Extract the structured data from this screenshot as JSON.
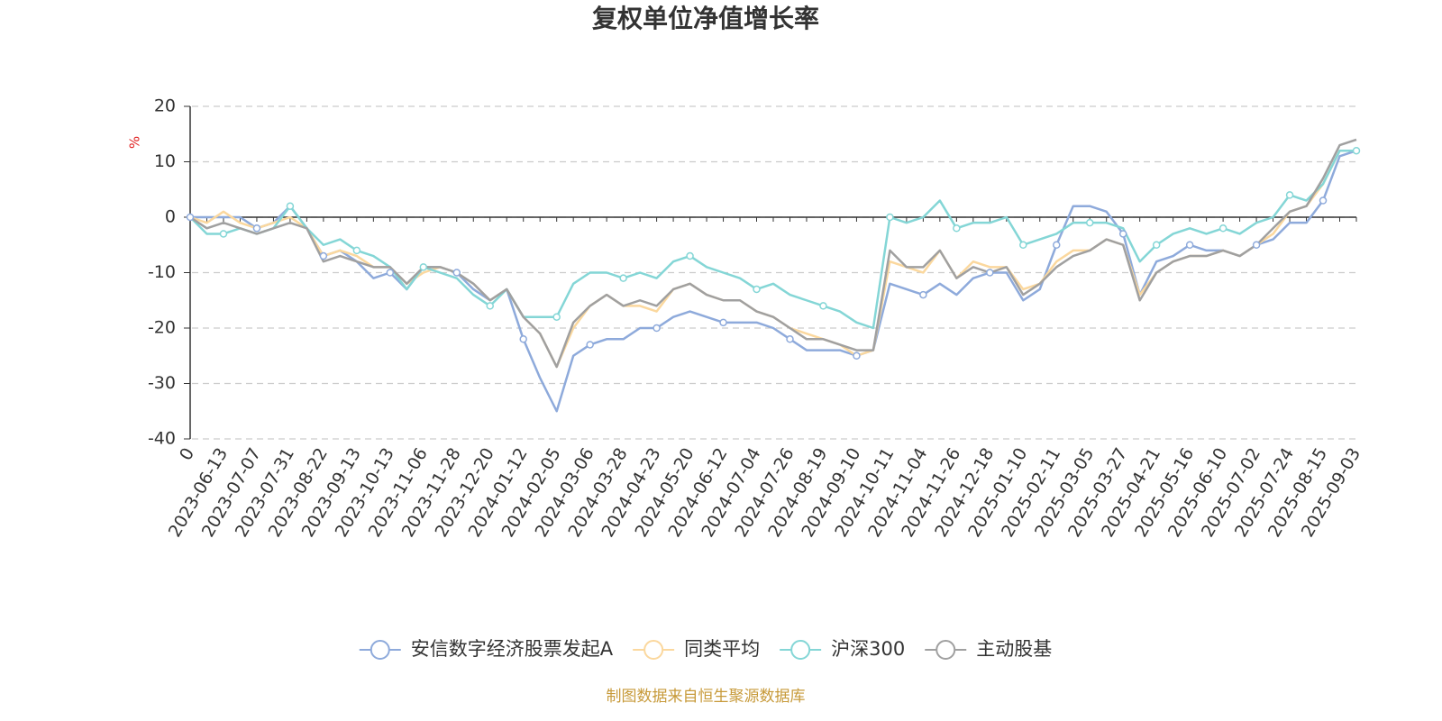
{
  "chart_data": {
    "type": "line",
    "title": "复权单位净值增长率",
    "y_label": "%",
    "source": "制图数据来自恒生聚源数据库",
    "categories": [
      "0",
      null,
      "2023-06-13",
      null,
      "2023-07-07",
      null,
      "2023-07-31",
      null,
      "2023-08-22",
      null,
      "2023-09-13",
      null,
      "2023-10-13",
      null,
      "2023-11-06",
      null,
      "2023-11-28",
      null,
      "2023-12-20",
      null,
      "2024-01-12",
      null,
      "2024-02-05",
      null,
      "2024-03-06",
      null,
      "2024-03-28",
      null,
      "2024-04-23",
      null,
      "2024-05-20",
      null,
      "2024-06-12",
      null,
      "2024-07-04",
      null,
      "2024-07-26",
      null,
      "2024-08-19",
      null,
      "2024-09-10",
      null,
      "2024-10-11",
      null,
      "2024-11-04",
      null,
      "2024-11-26",
      null,
      "2024-12-18",
      null,
      "2025-01-10",
      null,
      "2025-02-11",
      null,
      "2025-03-05",
      null,
      "2025-03-27",
      null,
      "2025-04-21",
      null,
      "2025-05-16",
      null,
      "2025-06-10",
      null,
      "2025-07-02",
      null,
      "2025-07-24",
      null,
      "2025-08-15",
      null,
      "2025-09-03"
    ],
    "series": [
      {
        "name": "安信数字经济股票发起A",
        "color": "#8eaadb",
        "values": [
          0,
          0,
          0,
          0,
          -2,
          -1,
          2,
          -2,
          -7,
          -6,
          -8,
          -11,
          -10,
          -13,
          -9,
          -9,
          -10,
          -13,
          -15,
          -13,
          -22,
          -29,
          -35,
          -25,
          -23,
          -22,
          -22,
          -20,
          -20,
          -18,
          -17,
          -18,
          -19,
          -19,
          -19,
          -20,
          -22,
          -24,
          -24,
          -24,
          -25,
          -24,
          -12,
          -13,
          -14,
          -12,
          -14,
          -11,
          -10,
          -10,
          -15,
          -13,
          -5,
          2,
          2,
          1,
          -3,
          -14,
          -8,
          -7,
          -5,
          -6,
          -6,
          -7,
          -5,
          -4,
          -1,
          -1,
          3,
          11,
          12
        ]
      },
      {
        "name": "同类平均",
        "color": "#fbd89e",
        "values": [
          0,
          -1,
          1,
          -1,
          -2,
          -1,
          0,
          -2,
          -7,
          -6,
          -7,
          -9,
          -9,
          -12,
          -10,
          -9,
          -10,
          -12,
          -15,
          -13,
          -18,
          -21,
          -27,
          -20,
          -16,
          -14,
          -16,
          -16,
          -17,
          -13,
          -12,
          -14,
          -15,
          -15,
          -17,
          -18,
          -20,
          -21,
          -22,
          -23,
          -25,
          -24,
          -8,
          -9,
          -10,
          -6,
          -11,
          -8,
          -9,
          -9,
          -13,
          -12,
          -8,
          -6,
          -6,
          -4,
          -5,
          -14,
          -10,
          -8,
          -7,
          -7,
          -6,
          -7,
          -5,
          -3,
          1,
          2,
          6,
          12,
          12
        ]
      },
      {
        "name": "沪深300",
        "color": "#84d6d6",
        "values": [
          0,
          -3,
          -3,
          -2,
          -3,
          -2,
          2,
          -2,
          -5,
          -4,
          -6,
          -7,
          -9,
          -13,
          -9,
          -10,
          -11,
          -14,
          -16,
          -13,
          -18,
          -18,
          -18,
          -12,
          -10,
          -10,
          -11,
          -10,
          -11,
          -8,
          -7,
          -9,
          -10,
          -11,
          -13,
          -12,
          -14,
          -15,
          -16,
          -17,
          -19,
          -20,
          0,
          -1,
          0,
          3,
          -2,
          -1,
          -1,
          0,
          -5,
          -4,
          -3,
          -1,
          -1,
          -1,
          -2,
          -8,
          -5,
          -3,
          -2,
          -3,
          -2,
          -3,
          -1,
          0,
          4,
          3,
          6,
          12,
          12
        ]
      },
      {
        "name": "主动股基",
        "color": "#a0a0a0",
        "values": [
          0,
          -2,
          -1,
          -2,
          -3,
          -2,
          -1,
          -2,
          -8,
          -7,
          -8,
          -9,
          -9,
          -12,
          -9,
          -9,
          -10,
          -12,
          -15,
          -13,
          -18,
          -21,
          -27,
          -19,
          -16,
          -14,
          -16,
          -15,
          -16,
          -13,
          -12,
          -14,
          -15,
          -15,
          -17,
          -18,
          -20,
          -22,
          -22,
          -23,
          -24,
          -24,
          -6,
          -9,
          -9,
          -6,
          -11,
          -9,
          -10,
          -9,
          -14,
          -12,
          -9,
          -7,
          -6,
          -4,
          -5,
          -15,
          -10,
          -8,
          -7,
          -7,
          -6,
          -7,
          -5,
          -2,
          1,
          2,
          7,
          13,
          14
        ]
      }
    ],
    "ylim": [
      -40,
      20
    ],
    "yticks": [
      -40,
      -30,
      -20,
      -10,
      0,
      10,
      20
    ],
    "grid": true,
    "legend": "bottom"
  }
}
